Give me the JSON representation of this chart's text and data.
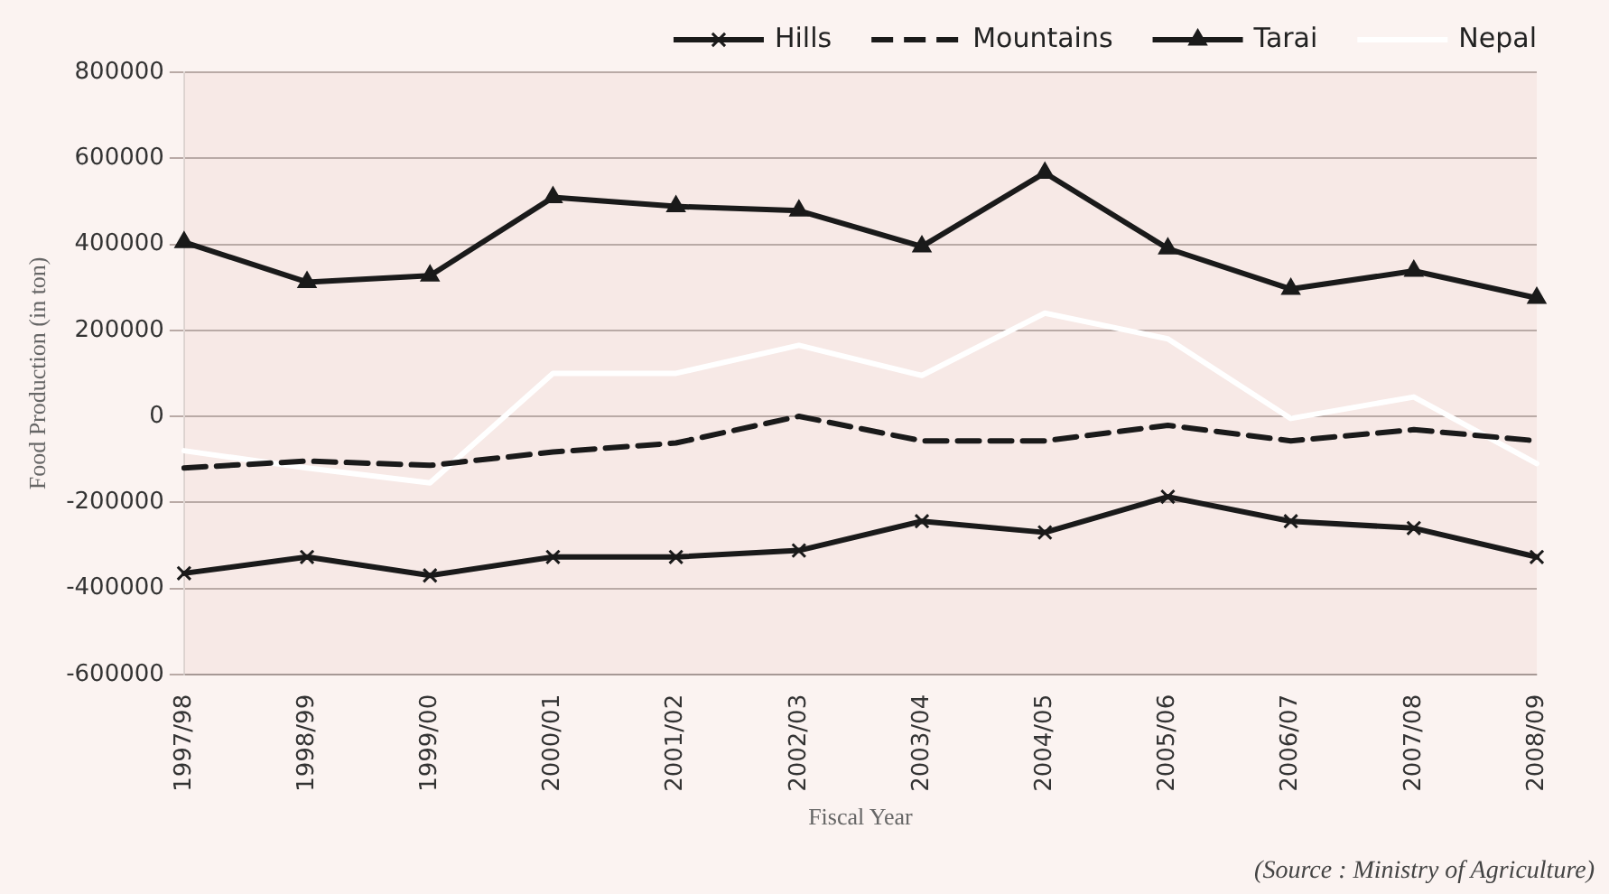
{
  "chart_data": {
    "type": "line",
    "ylabel": "Food Production (in ton)",
    "xlabel": "Fiscal Year",
    "categories": [
      "1997/98",
      "1998/99",
      "1999/00",
      "2000/01",
      "2001/02",
      "2002/03",
      "2003/04",
      "2004/05",
      "2005/06",
      "2006/07",
      "2007/08",
      "2008/09"
    ],
    "series": [
      {
        "name": "Hills",
        "color": "#1a1a1a",
        "marker": "cross",
        "line_style": "solid",
        "values": [
          -365000,
          -327000,
          -370000,
          -327000,
          -327000,
          -312000,
          -244000,
          -270000,
          -187000,
          -244000,
          -260000,
          -327000
        ]
      },
      {
        "name": "Mountains",
        "color": "#1a1a1a",
        "marker": "none",
        "line_style": "dashed",
        "values": [
          -120000,
          -104000,
          -114000,
          -83000,
          -62000,
          0,
          -57000,
          -57000,
          -21000,
          -57000,
          -31000,
          -57000
        ]
      },
      {
        "name": "Tarai",
        "color": "#1a1a1a",
        "marker": "triangle",
        "line_style": "solid",
        "values": [
          405000,
          312000,
          327000,
          509000,
          488000,
          478000,
          395000,
          566000,
          390000,
          296000,
          338000,
          275000
        ]
      },
      {
        "name": "Nepal",
        "color": "#ffffff",
        "marker": "none",
        "line_style": "solid",
        "values": [
          -80000,
          -120000,
          -155000,
          100000,
          100000,
          165000,
          95000,
          240000,
          180000,
          -5000,
          45000,
          -110000
        ]
      }
    ],
    "ylim": [
      -600000,
      800000
    ],
    "yticks": [
      -600000,
      -400000,
      -200000,
      0,
      200000,
      400000,
      600000,
      800000
    ],
    "grid": "y",
    "legend": "top",
    "annotations": [
      "(Source : Ministry of Agriculture)"
    ]
  }
}
